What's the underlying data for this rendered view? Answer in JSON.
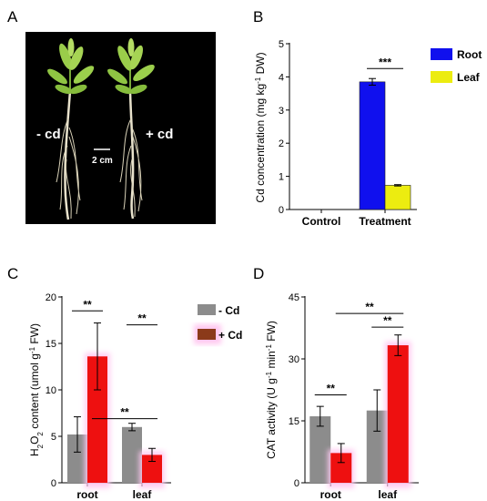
{
  "panels": {
    "a": {
      "letter": "A",
      "label_minus": "- cd",
      "label_plus": "+ cd",
      "scale_bar": "2 cm"
    },
    "b": {
      "letter": "B"
    },
    "c": {
      "letter": "C"
    },
    "d": {
      "letter": "D"
    }
  },
  "colors": {
    "root": "#1010ee",
    "leaf": "#ecec10",
    "minus_cd": "#8c8c8c",
    "plus_cd": "#ee1010",
    "plus_cd_legend": "#8b3a1a",
    "plus_glow": "#ffc8f0",
    "photo_bg": "#000000"
  },
  "chart_data": [
    {
      "panel": "B",
      "type": "bar",
      "categories": [
        "Control",
        "Treatment"
      ],
      "series": [
        {
          "name": "Root",
          "values": [
            0,
            3.85
          ],
          "errors": [
            0,
            0.1
          ]
        },
        {
          "name": "Leaf",
          "values": [
            0,
            0.73
          ],
          "errors": [
            0,
            0.02
          ]
        }
      ],
      "ylabel": "Cd concentration (mg kg-1 DW)",
      "ylim": [
        0,
        5
      ],
      "yticks": [
        0,
        1,
        2,
        3,
        4,
        5
      ],
      "legend_position": "right",
      "annotations": [
        {
          "text": "***",
          "between": [
            "Treatment:Root",
            "Treatment:Leaf"
          ]
        }
      ]
    },
    {
      "panel": "C",
      "type": "bar",
      "categories": [
        "root",
        "leaf"
      ],
      "series": [
        {
          "name": "- Cd",
          "values": [
            5.2,
            6.0
          ],
          "errors": [
            1.9,
            0.4
          ]
        },
        {
          "name": "+ Cd",
          "values": [
            13.6,
            3.0
          ],
          "errors": [
            3.6,
            0.7
          ]
        }
      ],
      "ylabel": "H2O2 content (umol g-1 FW)",
      "ylim": [
        0,
        20
      ],
      "yticks": [
        0,
        5,
        10,
        15,
        20
      ],
      "legend_position": "right",
      "annotations": [
        {
          "text": "**",
          "between": [
            "root:- Cd",
            "root:+ Cd"
          ]
        },
        {
          "text": "**",
          "between": [
            "leaf:- Cd",
            "leaf:+ Cd"
          ]
        },
        {
          "text": "**",
          "between": [
            "root:+ Cd",
            "leaf:+ Cd"
          ]
        }
      ]
    },
    {
      "panel": "D",
      "type": "bar",
      "categories": [
        "root",
        "leaf"
      ],
      "series": [
        {
          "name": "- Cd",
          "values": [
            16.1,
            17.5
          ],
          "errors": [
            2.4,
            5.0
          ]
        },
        {
          "name": "+ Cd",
          "values": [
            7.2,
            33.3
          ],
          "errors": [
            2.3,
            2.5
          ]
        }
      ],
      "ylabel": "CAT activity (U g-1 min-1 FW)",
      "ylim": [
        0,
        45
      ],
      "yticks": [
        0,
        15,
        30,
        45
      ],
      "annotations": [
        {
          "text": "**",
          "between": [
            "root:- Cd",
            "root:+ Cd"
          ]
        },
        {
          "text": "**",
          "between": [
            "leaf:- Cd",
            "leaf:+ Cd"
          ]
        },
        {
          "text": "**",
          "between": [
            "root:+ Cd",
            "leaf:+ Cd"
          ]
        }
      ]
    }
  ]
}
